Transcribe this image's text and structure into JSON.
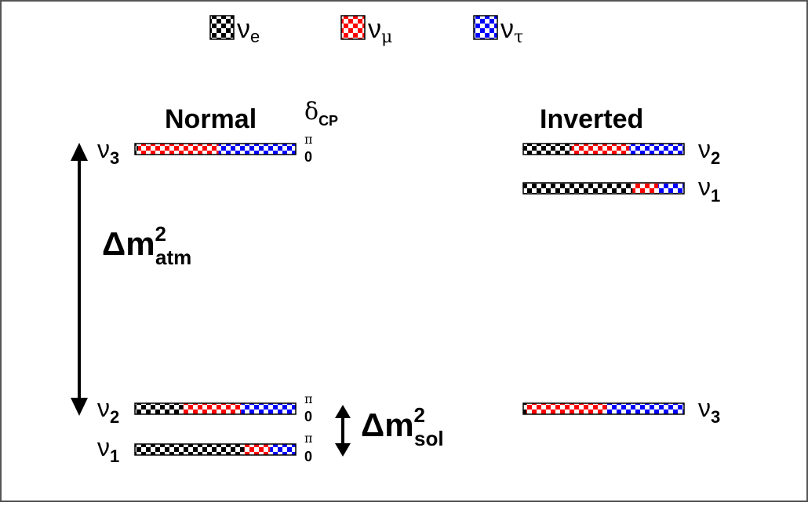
{
  "colors": {
    "nu_e": "#000000",
    "nu_mu": "#ff0000",
    "nu_tau": "#0000ff",
    "frame": "#555555"
  },
  "legend": [
    {
      "id": "e",
      "label": "ν",
      "sub": "e",
      "color": "#000000"
    },
    {
      "id": "mu",
      "label": "ν",
      "sub": "μ",
      "color": "#ff0000"
    },
    {
      "id": "tau",
      "label": "ν",
      "sub": "τ",
      "color": "#0000ff"
    }
  ],
  "normal": {
    "title": "Normal",
    "delta_cp_label": "δ",
    "delta_cp_sub": "CP",
    "phase_top": "π",
    "phase_bottom": "0",
    "states": [
      {
        "label": "ν",
        "sub": "3",
        "fractions": {
          "e": 0.02,
          "mu": 0.5,
          "tau": 0.48
        }
      },
      {
        "label": "ν",
        "sub": "2",
        "fractions": {
          "e": 0.3,
          "mu": 0.36,
          "tau": 0.34
        }
      },
      {
        "label": "ν",
        "sub": "1",
        "fractions": {
          "e": 0.68,
          "mu": 0.16,
          "tau": 0.16
        }
      }
    ],
    "atm_label": "Δm",
    "atm_sup": "2",
    "atm_sub": "atm",
    "sol_label": "Δm",
    "sol_sup": "2",
    "sol_sub": "sol"
  },
  "inverted": {
    "title": "Inverted",
    "states": [
      {
        "label": "ν",
        "sub": "2",
        "fractions": {
          "e": 0.3,
          "mu": 0.36,
          "tau": 0.34
        }
      },
      {
        "label": "ν",
        "sub": "1",
        "fractions": {
          "e": 0.68,
          "mu": 0.16,
          "tau": 0.16
        }
      },
      {
        "label": "ν",
        "sub": "3",
        "fractions": {
          "e": 0.02,
          "mu": 0.5,
          "tau": 0.48
        }
      }
    ]
  }
}
